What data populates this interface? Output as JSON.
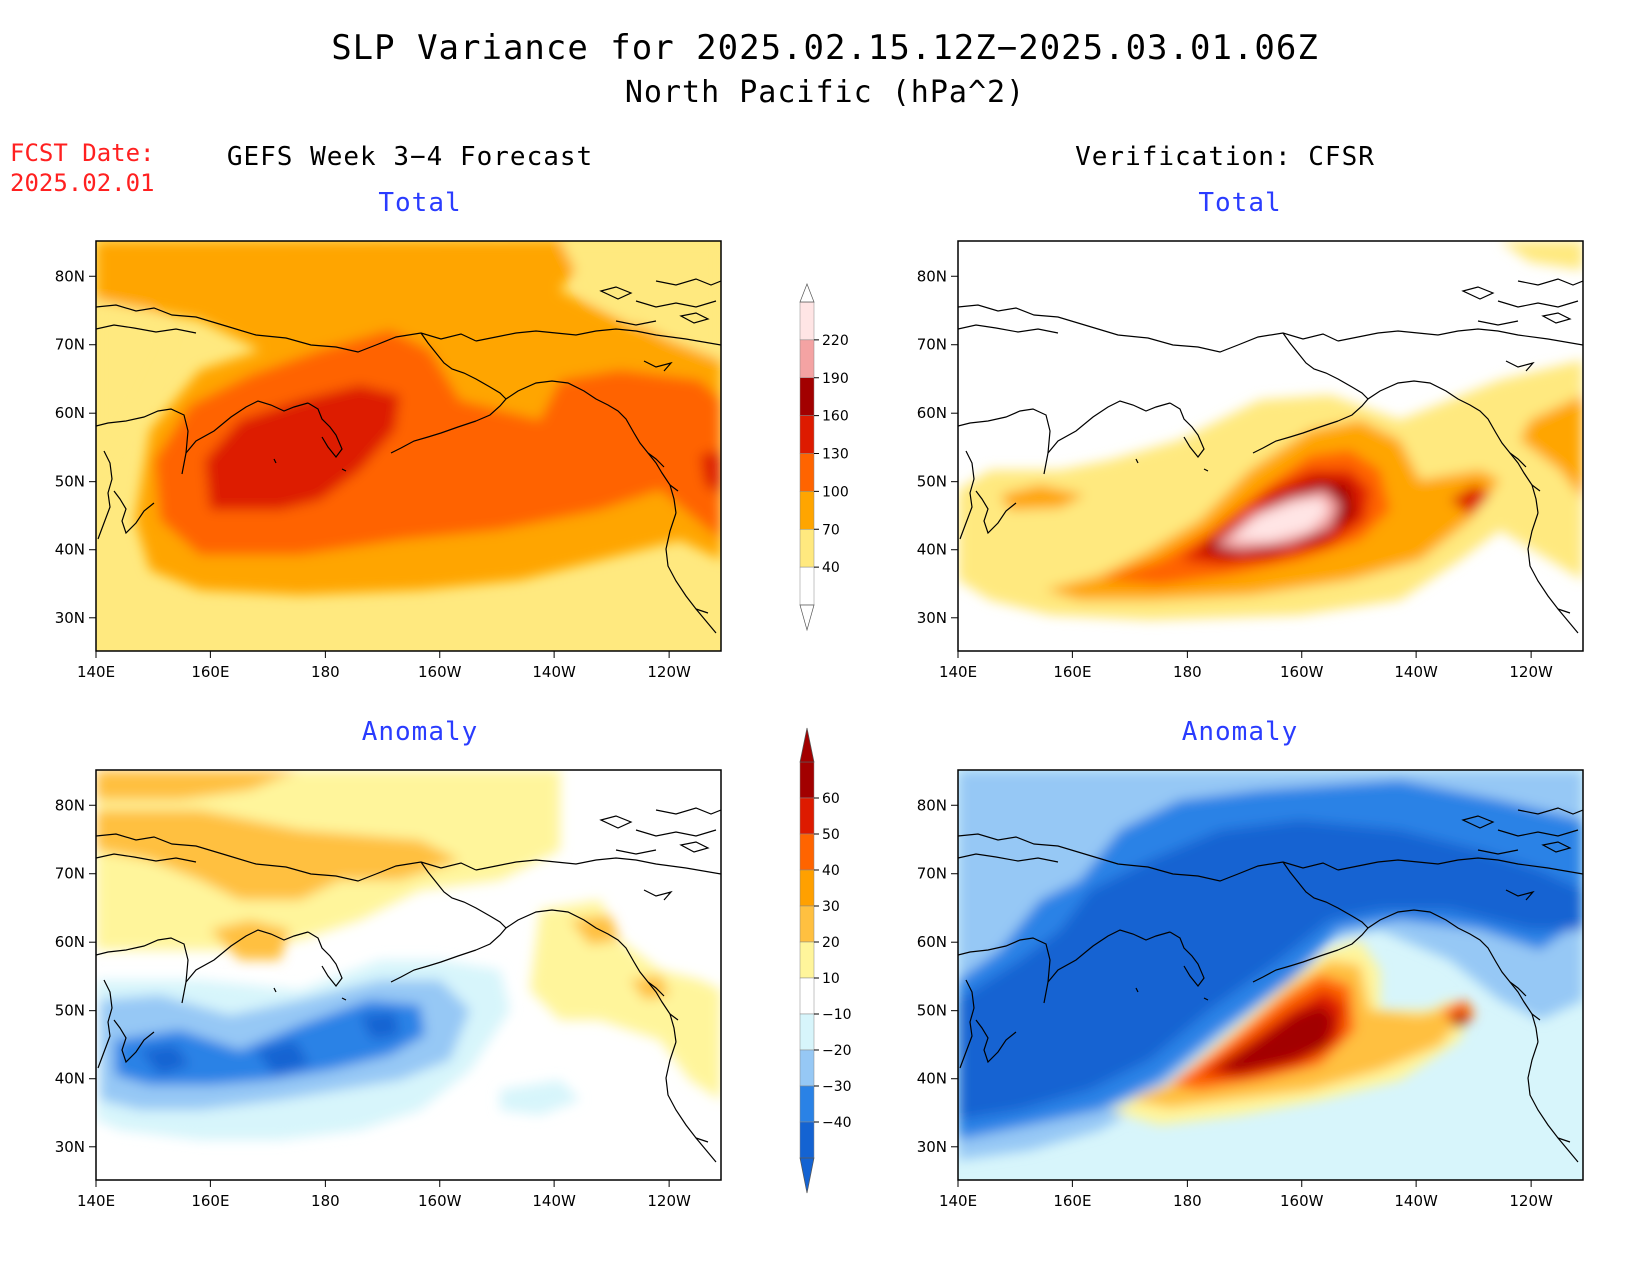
{
  "header": {
    "title_line1": "SLP Variance for 2025.02.15.12Z−2025.03.01.06Z",
    "title_line2": "North Pacific (hPa^2)",
    "fcst_label": "FCST Date:",
    "fcst_date": "2025.02.01"
  },
  "columns": {
    "left_title": "GEFS Week 3−4 Forecast",
    "right_title": "Verification: CFSR"
  },
  "panels": {
    "top_left_label": "Total",
    "top_right_label": "Total",
    "bottom_left_label": "Anomaly",
    "bottom_right_label": "Anomaly"
  },
  "axes": {
    "x_ticks": [
      "140E",
      "160E",
      "180",
      "160W",
      "140W",
      "120W"
    ],
    "y_ticks": [
      "30N",
      "40N",
      "50N",
      "60N",
      "70N",
      "80N"
    ]
  },
  "colorbar_total": {
    "levels": [
      "40",
      "70",
      "100",
      "130",
      "160",
      "190",
      "220"
    ],
    "colors": [
      "#ffffff",
      "#ffe97f",
      "#ffa500",
      "#ff6400",
      "#dd1a00",
      "#a20000",
      "#f4a3a3",
      "#ffe5e5"
    ]
  },
  "colorbar_anomaly": {
    "levels": [
      "−40",
      "−30",
      "−20",
      "−10",
      "10",
      "20",
      "30",
      "40",
      "50",
      "60"
    ],
    "colors": [
      "#1463d2",
      "#2a82e6",
      "#96c8f5",
      "#d7f5fb",
      "#ffffff",
      "#fff59b",
      "#ffc040",
      "#ffa000",
      "#ff6400",
      "#dd1a00",
      "#a20000"
    ]
  },
  "colors": {
    "fcst_text": "#ff2020",
    "subtitle_text": "#2a3cff",
    "coastline": "#000000"
  }
}
